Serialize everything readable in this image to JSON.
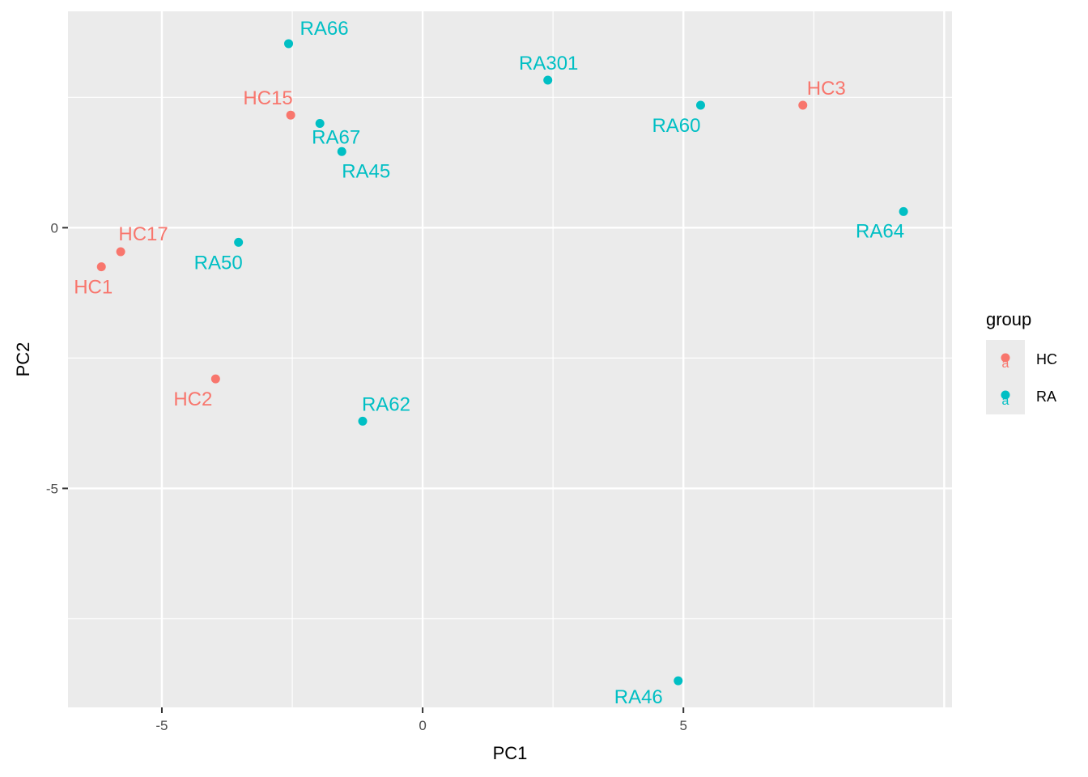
{
  "chart_data": {
    "type": "scatter",
    "title": "",
    "xlabel": "PC1",
    "ylabel": "PC2",
    "xlim": [
      -6.8,
      10.15
    ],
    "ylim": [
      -9.2,
      4.15
    ],
    "xticks": [
      -5,
      0,
      5
    ],
    "yticks": [
      -5,
      0
    ],
    "grid": true,
    "legend": {
      "title": "group",
      "position": "right",
      "entries": [
        {
          "name": "HC",
          "color": "#F8766D"
        },
        {
          "name": "RA",
          "color": "#00BFC4"
        }
      ]
    },
    "points": [
      {
        "label": "RA66",
        "group": "RA",
        "x": -2.57,
        "y": 3.53
      },
      {
        "label": "RA301",
        "group": "RA",
        "x": 2.4,
        "y": 2.83
      },
      {
        "label": "HC15",
        "group": "HC",
        "x": -2.53,
        "y": 2.16
      },
      {
        "label": "RA67",
        "group": "RA",
        "x": -1.97,
        "y": 2.0
      },
      {
        "label": "RA45",
        "group": "RA",
        "x": -1.55,
        "y": 1.46
      },
      {
        "label": "RA60",
        "group": "RA",
        "x": 5.33,
        "y": 2.35
      },
      {
        "label": "HC3",
        "group": "HC",
        "x": 7.29,
        "y": 2.35
      },
      {
        "label": "RA64",
        "group": "RA",
        "x": 9.22,
        "y": 0.31
      },
      {
        "label": "HC17",
        "group": "HC",
        "x": -5.79,
        "y": -0.46
      },
      {
        "label": "HC1",
        "group": "HC",
        "x": -6.16,
        "y": -0.75
      },
      {
        "label": "RA50",
        "group": "RA",
        "x": -3.53,
        "y": -0.28
      },
      {
        "label": "HC2",
        "group": "HC",
        "x": -3.97,
        "y": -2.9
      },
      {
        "label": "RA62",
        "group": "RA",
        "x": -1.15,
        "y": -3.71
      },
      {
        "label": "RA46",
        "group": "RA",
        "x": 4.9,
        "y": -8.69
      }
    ]
  }
}
